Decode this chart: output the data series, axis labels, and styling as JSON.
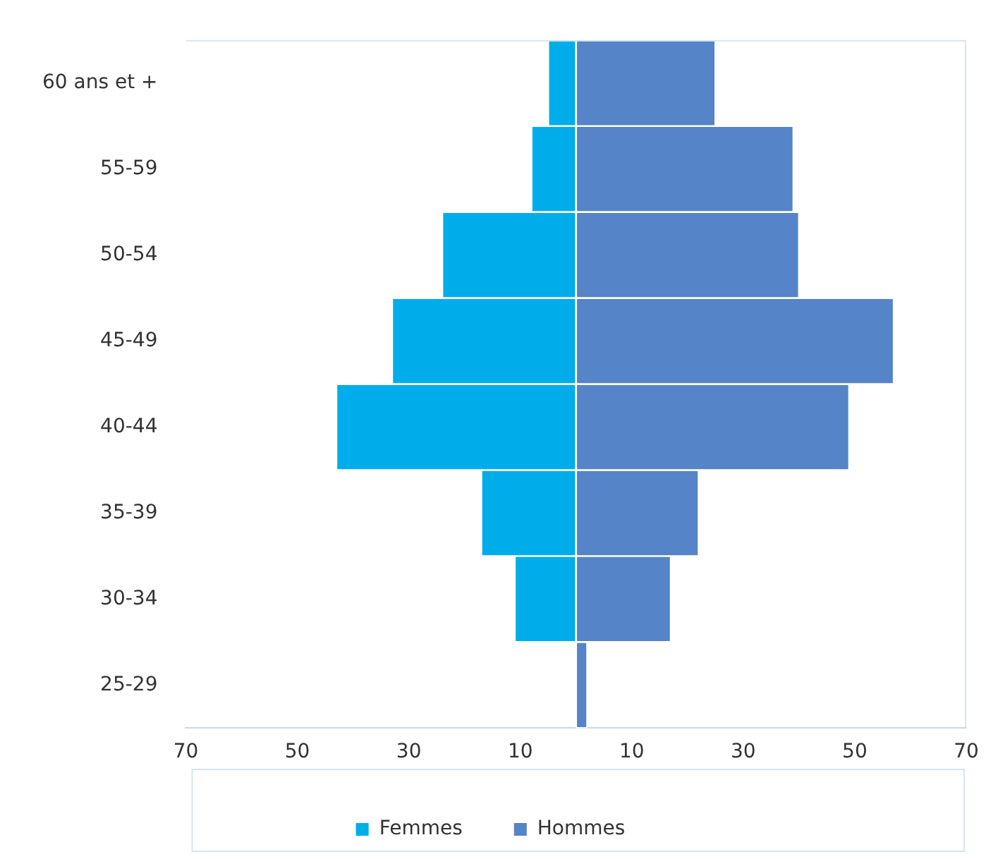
{
  "chart_data": {
    "type": "bar",
    "orientation": "horizontal",
    "stacked": true,
    "categories": [
      "60 ans et +",
      "55-59",
      "50-54",
      "45-49",
      "40-44",
      "35-39",
      "30-34",
      "25-29"
    ],
    "series": [
      {
        "name": "Femmes",
        "color": "#00adeb",
        "values": [
          -5,
          -8,
          -24,
          -33,
          -43,
          -17,
          -11,
          0
        ]
      },
      {
        "name": "Hommes",
        "color": "#5584c8",
        "values": [
          25,
          39,
          40,
          57,
          49,
          22,
          17,
          2
        ]
      }
    ],
    "xlim": [
      -70,
      70
    ],
    "xticks": [
      {
        "value": -70,
        "label": "70"
      },
      {
        "value": -50,
        "label": "50"
      },
      {
        "value": -30,
        "label": "30"
      },
      {
        "value": -10,
        "label": "10"
      },
      10,
      30,
      50,
      70
    ],
    "grid": false,
    "legend": "bottom"
  }
}
